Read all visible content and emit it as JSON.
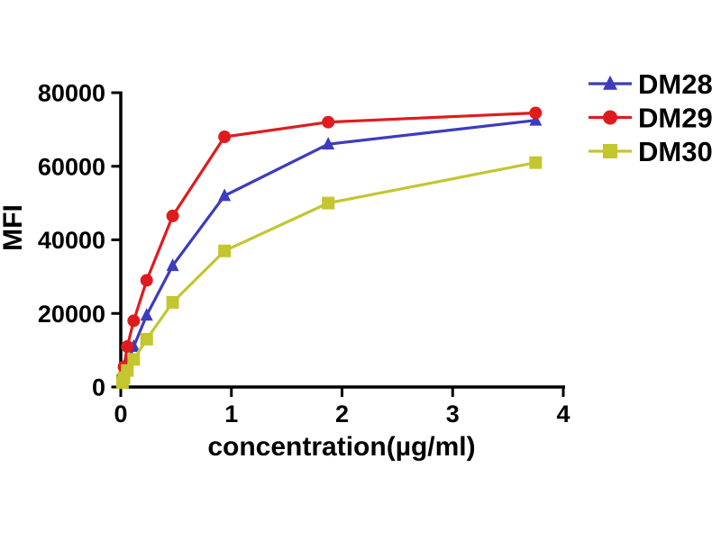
{
  "figure": {
    "background": "#ffffff",
    "axis_color": "#000000",
    "text_color": "#000000"
  },
  "chart_data": {
    "type": "line",
    "title": "",
    "xlabel": "concentration(µg/ml)",
    "ylabel": "MFI",
    "xlim": [
      0,
      4
    ],
    "ylim": [
      0,
      80000
    ],
    "x_ticks": [
      0,
      1,
      2,
      3,
      4
    ],
    "x_tick_labels": [
      "0",
      "1",
      "2",
      "3",
      "4"
    ],
    "y_ticks": [
      0,
      20000,
      40000,
      60000,
      80000
    ],
    "y_tick_labels": [
      "0",
      "20000",
      "40000",
      "60000",
      "80000"
    ],
    "grid": false,
    "legend_position": "top-right",
    "x": [
      0.015,
      0.029,
      0.059,
      0.117,
      0.234,
      0.469,
      0.938,
      1.875,
      3.75
    ],
    "series": [
      {
        "name": "DM28",
        "marker": "triangle",
        "color": "#3c3cbe",
        "values": [
          1500,
          3500,
          6500,
          11000,
          19500,
          33000,
          52000,
          66000,
          72500
        ]
      },
      {
        "name": "DM29",
        "marker": "circle",
        "color": "#e01b1e",
        "values": [
          2500,
          5500,
          11000,
          18000,
          29000,
          46500,
          68000,
          72000,
          74500
        ]
      },
      {
        "name": "DM30",
        "marker": "square",
        "color": "#c3c62f",
        "values": [
          1200,
          2500,
          4500,
          7500,
          13000,
          23000,
          37000,
          50000,
          61000
        ]
      }
    ]
  }
}
